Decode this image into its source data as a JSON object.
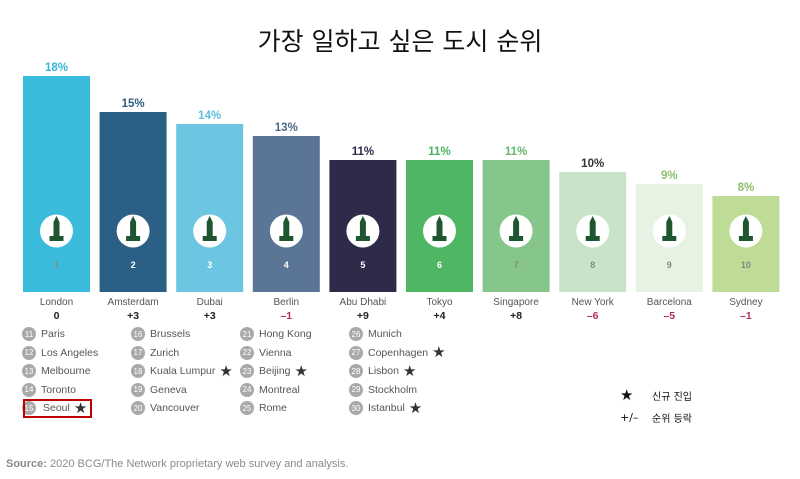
{
  "title": "가장 일하고 싶은 도시 순위",
  "chart_data": {
    "type": "bar",
    "categories": [
      "London",
      "Amsterdam",
      "Dubai",
      "Berlin",
      "Abu Dhabi",
      "Tokyo",
      "Singapore",
      "New York",
      "Barcelona",
      "Sydney"
    ],
    "values": [
      18,
      15,
      14,
      13,
      11,
      11,
      11,
      10,
      9,
      8
    ],
    "value_labels": [
      "18%",
      "15%",
      "14%",
      "13%",
      "11%",
      "11%",
      "11%",
      "10%",
      "9%",
      "8%"
    ],
    "ranks": [
      "1",
      "2",
      "3",
      "4",
      "5",
      "6",
      "7",
      "8",
      "9",
      "10"
    ],
    "changes": [
      "0",
      "+3",
      "+3",
      "–1",
      "+9",
      "+4",
      "+8",
      "–6",
      "–5",
      "–1"
    ],
    "colors": [
      "#3bbbdc",
      "#2c5f86",
      "#6cc5e1",
      "#5a7596",
      "#2e2a4a",
      "#4fb764",
      "#86c68a",
      "#c8e3c8",
      "#e7f2e2",
      "#bedc96"
    ],
    "label_colors": [
      "#35b7d9",
      "#2b5e84",
      "#5bbfdd",
      "#4c6787",
      "#2e2a4a",
      "#47b45d",
      "#67b86c",
      "#333333",
      "#8cc06a",
      "#8cc06a"
    ],
    "change_colors": [
      "#222222",
      "#222222",
      "#222222",
      "#b0305a",
      "#222222",
      "#222222",
      "#222222",
      "#b0305a",
      "#b0305a",
      "#b0305a"
    ],
    "icons": [
      "big-ben-icon",
      "windmill-icon",
      "burj-al-arab-icon",
      "brandenburg-gate-icon",
      "mosque-icon",
      "tokyo-tower-icon",
      "merlion-icon",
      "empire-state-icon",
      "sagrada-familia-icon",
      "opera-house-icon"
    ],
    "ylim": [
      0,
      20
    ]
  },
  "rank_columns": [
    [
      {
        "rank": "11",
        "city": "Paris",
        "new": false
      },
      {
        "rank": "12",
        "city": "Los Angeles",
        "new": false
      },
      {
        "rank": "13",
        "city": "Melbourne",
        "new": false
      },
      {
        "rank": "14",
        "city": "Toronto",
        "new": false
      },
      {
        "rank": "15",
        "city": "Seoul",
        "new": true,
        "highlight": true
      }
    ],
    [
      {
        "rank": "16",
        "city": "Brussels",
        "new": false
      },
      {
        "rank": "17",
        "city": "Zurich",
        "new": false
      },
      {
        "rank": "18",
        "city": "Kuala Lumpur",
        "new": true
      },
      {
        "rank": "19",
        "city": "Geneva",
        "new": false
      },
      {
        "rank": "20",
        "city": "Vancouver",
        "new": false
      }
    ],
    [
      {
        "rank": "21",
        "city": "Hong Kong",
        "new": false
      },
      {
        "rank": "22",
        "city": "Vienna",
        "new": false
      },
      {
        "rank": "23",
        "city": "Beijing",
        "new": true
      },
      {
        "rank": "24",
        "city": "Montreal",
        "new": false
      },
      {
        "rank": "25",
        "city": "Rome",
        "new": false
      }
    ],
    [
      {
        "rank": "26",
        "city": "Munich",
        "new": false
      },
      {
        "rank": "27",
        "city": "Copenhagen",
        "new": true
      },
      {
        "rank": "28",
        "city": "Lisbon",
        "new": true
      },
      {
        "rank": "29",
        "city": "Stockholm",
        "new": false
      },
      {
        "rank": "30",
        "city": "Istanbul",
        "new": true
      }
    ]
  ],
  "star_glyph": "★",
  "legend": {
    "new_symbol": "★",
    "new_label": "신규 진입",
    "change_symbol": "+/–",
    "change_label": "순위 등락"
  },
  "source": {
    "prefix": "Source:",
    "text": " 2020 BCG/The Network proprietary web survey and analysis."
  }
}
